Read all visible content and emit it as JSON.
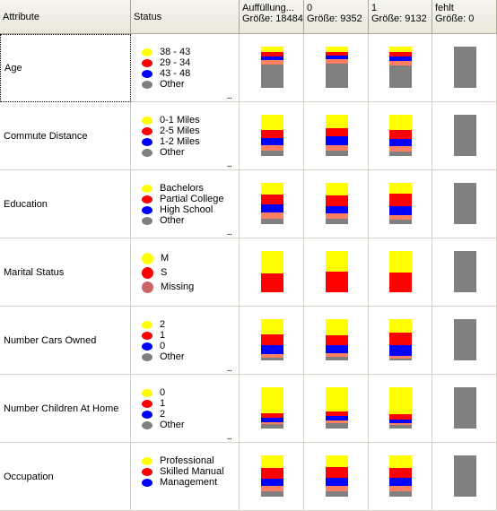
{
  "header": {
    "attribute": "Attribute",
    "status": "Status",
    "col_total": [
      "Auffüllung...",
      "Größe: 18484"
    ],
    "col_0": [
      "0",
      "Größe: 9352"
    ],
    "col_1": [
      "1",
      "Größe: 9132"
    ],
    "col_missing": [
      "fehlt",
      "Größe: 0"
    ]
  },
  "colors": {
    "yellow": "#ffff00",
    "red": "#ff0000",
    "blue": "#0000ff",
    "salmon": "#ff8060",
    "gray": "#808080",
    "missing": "#cc6666"
  },
  "rows": [
    {
      "attribute": "Age",
      "legend": [
        {
          "label": "38 - 43",
          "color": "#ffff00"
        },
        {
          "label": "29 - 34",
          "color": "#ff0000"
        },
        {
          "label": "43 - 48",
          "color": "#0000ff"
        },
        {
          "label": "Other",
          "color": "#808080"
        }
      ],
      "more": "...",
      "dist": [
        [
          0.13,
          0.1,
          0.1,
          0.1,
          0.57
        ],
        [
          0.13,
          0.08,
          0.1,
          0.1,
          0.59
        ],
        [
          0.13,
          0.1,
          0.12,
          0.1,
          0.55
        ]
      ]
    },
    {
      "attribute": "Commute Distance",
      "legend": [
        {
          "label": "0-1 Miles",
          "color": "#ffff00"
        },
        {
          "label": "2-5 Miles",
          "color": "#ff0000"
        },
        {
          "label": "1-2 Miles",
          "color": "#0000ff"
        },
        {
          "label": "Other",
          "color": "#808080"
        }
      ],
      "more": "...",
      "dist": [
        [
          0.36,
          0.2,
          0.18,
          0.14,
          0.12
        ],
        [
          0.33,
          0.2,
          0.2,
          0.15,
          0.12
        ],
        [
          0.36,
          0.22,
          0.18,
          0.13,
          0.11
        ]
      ]
    },
    {
      "attribute": "Education",
      "legend": [
        {
          "label": "Bachelors",
          "color": "#ffff00"
        },
        {
          "label": "Partial College",
          "color": "#ff0000"
        },
        {
          "label": "High School",
          "color": "#0000ff"
        },
        {
          "label": "Other",
          "color": "#808080"
        }
      ],
      "more": "...",
      "dist": [
        [
          0.28,
          0.24,
          0.2,
          0.16,
          0.12
        ],
        [
          0.3,
          0.26,
          0.18,
          0.14,
          0.12
        ],
        [
          0.26,
          0.3,
          0.22,
          0.12,
          0.1
        ]
      ]
    },
    {
      "attribute": "Marital Status",
      "legend": [
        {
          "label": "M",
          "color": "#ffff00",
          "big": true
        },
        {
          "label": "S",
          "color": "#ff0000",
          "big": true
        },
        {
          "label": "Missing",
          "color": "#cc6666",
          "big": true
        }
      ],
      "more": "",
      "dist": [
        [
          0.54,
          0.46,
          0,
          0,
          0
        ],
        [
          0.5,
          0.5,
          0,
          0,
          0
        ],
        [
          0.52,
          0.48,
          0,
          0,
          0
        ]
      ]
    },
    {
      "attribute": "Number Cars Owned",
      "legend": [
        {
          "label": "2",
          "color": "#ffff00"
        },
        {
          "label": "1",
          "color": "#ff0000"
        },
        {
          "label": "0",
          "color": "#0000ff"
        },
        {
          "label": "Other",
          "color": "#808080"
        }
      ],
      "more": "...",
      "dist": [
        [
          0.36,
          0.26,
          0.22,
          0.1,
          0.06
        ],
        [
          0.4,
          0.22,
          0.2,
          0.1,
          0.08
        ],
        [
          0.32,
          0.3,
          0.28,
          0.06,
          0.04
        ]
      ]
    },
    {
      "attribute": "Number Children At Home",
      "legend": [
        {
          "label": "0",
          "color": "#ffff00"
        },
        {
          "label": "1",
          "color": "#ff0000"
        },
        {
          "label": "2",
          "color": "#0000ff"
        },
        {
          "label": "Other",
          "color": "#808080"
        }
      ],
      "more": "...",
      "dist": [
        [
          0.62,
          0.12,
          0.1,
          0.06,
          0.1
        ],
        [
          0.58,
          0.12,
          0.1,
          0.06,
          0.14
        ],
        [
          0.66,
          0.12,
          0.08,
          0.06,
          0.08
        ]
      ]
    },
    {
      "attribute": "Occupation",
      "legend": [
        {
          "label": "Professional",
          "color": "#ffff00"
        },
        {
          "label": "Skilled Manual",
          "color": "#ff0000"
        },
        {
          "label": "Management",
          "color": "#0000ff"
        }
      ],
      "more": "",
      "dist": [
        [
          0.3,
          0.26,
          0.18,
          0.14,
          0.12
        ],
        [
          0.28,
          0.26,
          0.2,
          0.14,
          0.12
        ],
        [
          0.3,
          0.24,
          0.2,
          0.14,
          0.12
        ]
      ]
    }
  ]
}
